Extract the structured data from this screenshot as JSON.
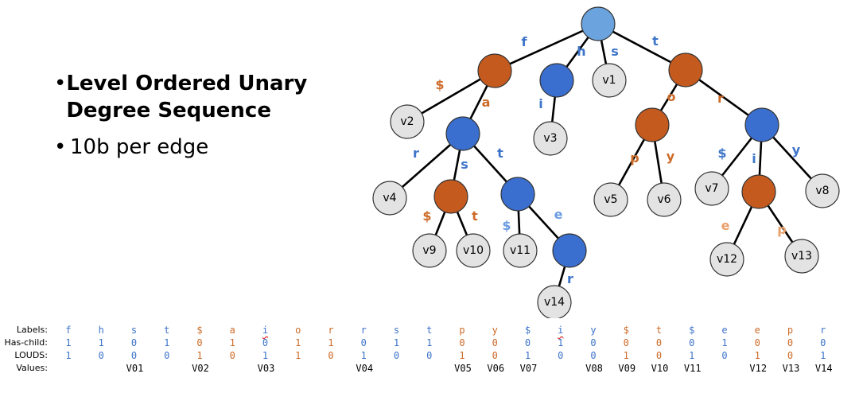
{
  "bullets": [
    {
      "text": "Level Ordered Unary Degree Sequence"
    },
    {
      "text": "10b per edge"
    }
  ],
  "tree": {
    "edge_labels": {
      "f": "f",
      "h": "h",
      "s": "s",
      "t": "t",
      "dollar1": "$",
      "a": "a",
      "i1": "i",
      "o": "o",
      "r1": "r",
      "r2": "r",
      "s2": "s",
      "t2": "t",
      "p1": "p",
      "y1": "y",
      "dollar2": "$",
      "i2": "i",
      "y2": "y",
      "dollar3": "$",
      "t3": "t",
      "dollar4": "$",
      "e1": "e",
      "e2": "e",
      "p2": "p",
      "r3": "r"
    },
    "leaves": {
      "v1": "v1",
      "v2": "v2",
      "v3": "v3",
      "v4": "v4",
      "v5": "v5",
      "v6": "v6",
      "v7": "v7",
      "v8": "v8",
      "v9": "v9",
      "v10": "v10",
      "v11": "v11",
      "v12": "v12",
      "v13": "v13",
      "v14": "v14"
    }
  },
  "table": {
    "row_headers": [
      "Labels:",
      "Has-child:",
      "LOUDS:",
      "Values:"
    ],
    "labels": [
      "f",
      "h",
      "s",
      "t",
      "$",
      "a",
      "i",
      "o",
      "r",
      "r",
      "s",
      "t",
      "p",
      "y",
      "$",
      "i",
      "y",
      "$",
      "t",
      "$",
      "e",
      "e",
      "p",
      "r"
    ],
    "label_colors": [
      "b",
      "b",
      "b",
      "b",
      "o",
      "o",
      "b",
      "o",
      "o",
      "b",
      "b",
      "b",
      "o",
      "o",
      "b",
      "b",
      "b",
      "o",
      "o",
      "b",
      "b",
      "o",
      "o",
      "b"
    ],
    "has_child": [
      "1",
      "1",
      "0",
      "1",
      "0",
      "1",
      "0",
      "1",
      "1",
      "0",
      "1",
      "1",
      "0",
      "0",
      "0",
      "1",
      "0",
      "0",
      "0",
      "0",
      "1",
      "0",
      "0",
      "0"
    ],
    "louds": [
      "1",
      "0",
      "0",
      "0",
      "1",
      "0",
      "1",
      "1",
      "0",
      "1",
      "0",
      "0",
      "1",
      "0",
      "1",
      "0",
      "0",
      "1",
      "0",
      "1",
      "0",
      "1",
      "0",
      "1"
    ],
    "values": [
      {
        "col": 3,
        "text": "V01"
      },
      {
        "col": 5,
        "text": "V02"
      },
      {
        "col": 7,
        "text": "V03"
      },
      {
        "col": 10,
        "text": "V04"
      },
      {
        "col": 13,
        "text": "V05"
      },
      {
        "col": 14,
        "text": "V06"
      },
      {
        "col": 15,
        "text": "V07"
      },
      {
        "col": 17,
        "text": "V08"
      },
      {
        "col": 18,
        "text": "V09"
      },
      {
        "col": 19,
        "text": "V10"
      },
      {
        "col": 20,
        "text": "V11"
      },
      {
        "col": 22,
        "text": "V12"
      },
      {
        "col": 23,
        "text": "V13"
      },
      {
        "col": 24,
        "text": "V14"
      }
    ]
  },
  "colors": {
    "blue": "#3e74c9",
    "orange": "#cd6b28"
  }
}
